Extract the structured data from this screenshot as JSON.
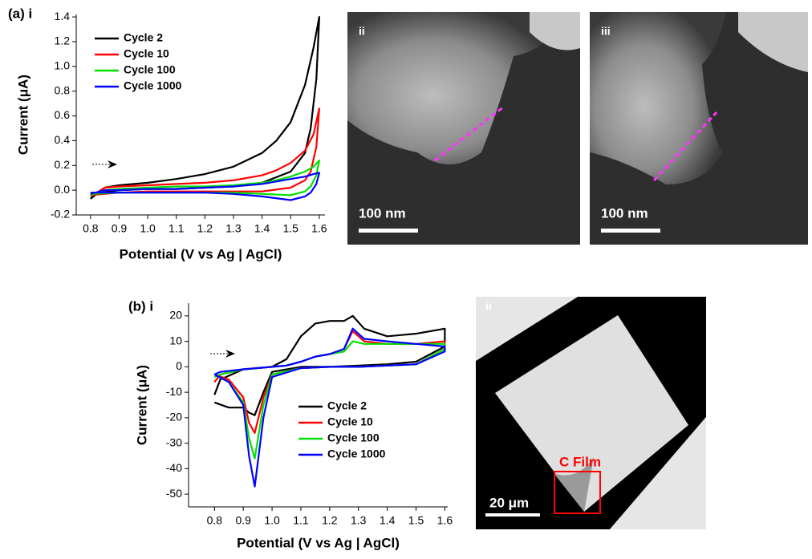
{
  "chart_data": [
    {
      "type": "line",
      "title": "(a) i",
      "xlabel": "Potential (V vs Ag | AgCl)",
      "ylabel": "Current (μA)",
      "xlim": [
        0.75,
        1.62
      ],
      "ylim": [
        -0.2,
        1.42
      ],
      "xticks": [
        0.8,
        0.9,
        {
          "value": 1,
          "label": "1.0"
        },
        1.1,
        1.2,
        1.3,
        1.4,
        1.5,
        1.6
      ],
      "yticks": [
        -0.2,
        {
          "value": 0,
          "label": "0.0"
        },
        0.2,
        0.4,
        0.6,
        0.8,
        {
          "value": 1,
          "label": "1.0"
        },
        1.2,
        1.4
      ],
      "legend": "upper left",
      "series": [
        {
          "name": "Cycle 2",
          "color": "#000000",
          "x": [
            0.8,
            0.85,
            0.9,
            1.0,
            1.1,
            1.2,
            1.3,
            1.4,
            1.45,
            1.5,
            1.55,
            1.58,
            1.6,
            1.59,
            1.57,
            1.55,
            1.5,
            1.4,
            1.3,
            1.2,
            1.1,
            1.0,
            0.9,
            0.8
          ],
          "values": [
            -0.07,
            0.02,
            0.04,
            0.06,
            0.09,
            0.13,
            0.19,
            0.3,
            0.4,
            0.55,
            0.85,
            1.15,
            1.4,
            0.9,
            0.5,
            0.3,
            0.15,
            0.06,
            0.03,
            0.02,
            0.01,
            0.01,
            0.0,
            -0.03
          ]
        },
        {
          "name": "Cycle 10",
          "color": "#ff0000",
          "x": [
            0.8,
            0.85,
            0.9,
            1.0,
            1.1,
            1.2,
            1.3,
            1.4,
            1.45,
            1.5,
            1.55,
            1.58,
            1.6,
            1.59,
            1.57,
            1.55,
            1.5,
            1.4,
            1.3,
            1.2,
            1.1,
            1.0,
            0.9,
            0.8
          ],
          "values": [
            -0.05,
            0.02,
            0.03,
            0.04,
            0.05,
            0.06,
            0.08,
            0.12,
            0.16,
            0.22,
            0.32,
            0.45,
            0.66,
            0.35,
            0.15,
            0.08,
            0.02,
            -0.01,
            -0.01,
            -0.01,
            -0.01,
            -0.01,
            -0.02,
            -0.04
          ]
        },
        {
          "name": "Cycle 100",
          "color": "#00e000",
          "x": [
            0.8,
            0.85,
            0.9,
            1.0,
            1.1,
            1.2,
            1.3,
            1.4,
            1.45,
            1.5,
            1.55,
            1.58,
            1.6,
            1.59,
            1.57,
            1.55,
            1.5,
            1.4,
            1.3,
            1.2,
            1.1,
            1.0,
            0.9,
            0.8
          ],
          "values": [
            -0.04,
            0.0,
            0.01,
            0.02,
            0.03,
            0.03,
            0.04,
            0.06,
            0.08,
            0.11,
            0.15,
            0.19,
            0.24,
            0.12,
            0.03,
            -0.01,
            -0.04,
            -0.03,
            -0.02,
            -0.02,
            -0.02,
            -0.02,
            -0.02,
            -0.03
          ]
        },
        {
          "name": "Cycle 1000",
          "color": "#0000ff",
          "x": [
            0.8,
            0.85,
            0.9,
            1.0,
            1.1,
            1.2,
            1.3,
            1.4,
            1.45,
            1.5,
            1.55,
            1.58,
            1.6,
            1.59,
            1.57,
            1.55,
            1.5,
            1.4,
            1.3,
            1.2,
            1.1,
            1.0,
            0.9,
            0.8
          ],
          "values": [
            -0.03,
            0.0,
            0.0,
            0.01,
            0.01,
            0.02,
            0.03,
            0.05,
            0.07,
            0.09,
            0.11,
            0.13,
            0.14,
            0.05,
            -0.02,
            -0.05,
            -0.08,
            -0.05,
            -0.03,
            -0.02,
            -0.02,
            -0.02,
            -0.02,
            -0.02
          ]
        }
      ]
    },
    {
      "type": "line",
      "title": "(b) i",
      "xlabel": "Potential (V vs Ag | AgCl)",
      "ylabel": "Current (μA)",
      "xlim": [
        0.71,
        1.61
      ],
      "ylim": [
        -55,
        25
      ],
      "xticks": [
        0.8,
        0.9,
        {
          "value": 1,
          "label": "1.0"
        },
        1.1,
        1.2,
        1.3,
        1.4,
        1.5,
        1.6
      ],
      "yticks": [
        -50,
        -40,
        -30,
        -20,
        -10,
        0,
        10,
        20
      ],
      "legend": "lower right",
      "series": [
        {
          "name": "Cycle 2",
          "color": "#000000",
          "x": [
            0.8,
            0.82,
            0.9,
            1.0,
            1.05,
            1.1,
            1.15,
            1.2,
            1.25,
            1.28,
            1.32,
            1.4,
            1.5,
            1.6,
            1.6,
            1.5,
            1.4,
            1.3,
            1.2,
            1.1,
            1.0,
            0.97,
            0.94,
            0.92,
            0.9,
            0.85,
            0.8
          ],
          "values": [
            -11,
            -5,
            -1,
            0,
            3,
            12,
            17,
            18,
            18,
            20,
            15,
            12,
            13,
            15,
            8,
            2,
            1,
            0.5,
            0,
            0,
            -2,
            -10,
            -19,
            -18,
            -16,
            -16,
            -14
          ]
        },
        {
          "name": "Cycle 10",
          "color": "#ff0000",
          "x": [
            0.8,
            0.82,
            0.9,
            1.0,
            1.05,
            1.1,
            1.15,
            1.2,
            1.25,
            1.28,
            1.32,
            1.4,
            1.5,
            1.6,
            1.6,
            1.5,
            1.4,
            1.3,
            1.2,
            1.1,
            1.0,
            0.97,
            0.94,
            0.92,
            0.9,
            0.85,
            0.8
          ],
          "values": [
            -6,
            -3,
            -1,
            0,
            0.5,
            2,
            4,
            5,
            7,
            14,
            10,
            9,
            9,
            10,
            7,
            1,
            0.5,
            0,
            0,
            -0.5,
            -3,
            -12,
            -26,
            -22,
            -12,
            -5,
            -3
          ]
        },
        {
          "name": "Cycle 100",
          "color": "#00e000",
          "x": [
            0.8,
            0.82,
            0.9,
            1.0,
            1.05,
            1.1,
            1.15,
            1.2,
            1.25,
            1.28,
            1.32,
            1.4,
            1.5,
            1.6,
            1.6,
            1.5,
            1.4,
            1.3,
            1.2,
            1.1,
            1.0,
            0.97,
            0.94,
            0.92,
            0.9,
            0.85,
            0.8
          ],
          "values": [
            -4,
            -3,
            -1,
            0,
            0.5,
            2,
            4,
            5,
            6,
            10,
            9,
            9,
            9,
            9,
            7,
            1,
            0.5,
            0,
            0,
            -0.5,
            -3,
            -15,
            -36,
            -28,
            -14,
            -6,
            -3
          ]
        },
        {
          "name": "Cycle 1000",
          "color": "#0000ff",
          "x": [
            0.8,
            0.82,
            0.9,
            1.0,
            1.05,
            1.1,
            1.15,
            1.2,
            1.25,
            1.28,
            1.32,
            1.4,
            1.5,
            1.6,
            1.6,
            1.5,
            1.4,
            1.3,
            1.2,
            1.1,
            1.0,
            0.97,
            0.94,
            0.92,
            0.9,
            0.85,
            0.8
          ],
          "values": [
            -3,
            -2,
            -1,
            0,
            0.5,
            2,
            4,
            5,
            7,
            15,
            11,
            10,
            9,
            8,
            6,
            1,
            0.5,
            0,
            0,
            -0.5,
            -4,
            -20,
            -47,
            -35,
            -15,
            -6,
            -3
          ]
        }
      ]
    }
  ],
  "images": [
    {
      "label": "ii",
      "scale": "100 nm"
    },
    {
      "label": "iii",
      "scale": "100 nm"
    },
    {
      "label": "ii",
      "scale": "20 μm",
      "annotation": "C Film"
    }
  ]
}
